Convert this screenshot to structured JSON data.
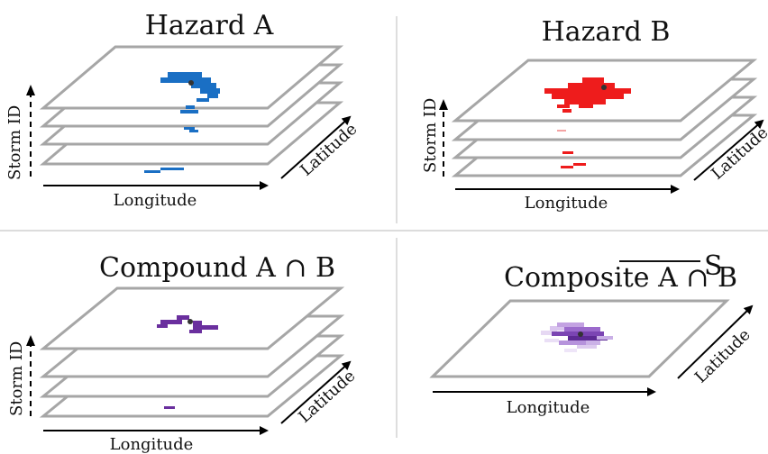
{
  "panels": [
    {
      "id": "hazard-a",
      "title": "Hazard A",
      "x_axis_label": "Longitude",
      "y_axis_label": "Storm ID",
      "z_axis_label": "Latitude",
      "fill_color": "#1a6fc4"
    },
    {
      "id": "hazard-b",
      "title": "Hazard B",
      "x_axis_label": "Longitude",
      "y_axis_label": "Storm ID",
      "z_axis_label": "Latitude",
      "fill_color": "#ee1c1c"
    },
    {
      "id": "compound",
      "title": "Compound A ∩ B",
      "x_axis_label": "Longitude",
      "y_axis_label": "Storm ID",
      "z_axis_label": "Latitude",
      "fill_color": "#6a2f9e"
    },
    {
      "id": "composite",
      "title_prefix": "Composite ",
      "title_overlined": "A ∩ B",
      "title_superscript": "S",
      "x_axis_label": "Longitude",
      "z_axis_label": "Latitude",
      "fill_color": "#6a2f9e"
    }
  ],
  "colors": {
    "sheet_edge": "#a6a6a6",
    "divider": "#c8c8c8",
    "storm_center_dot": "#333333"
  }
}
